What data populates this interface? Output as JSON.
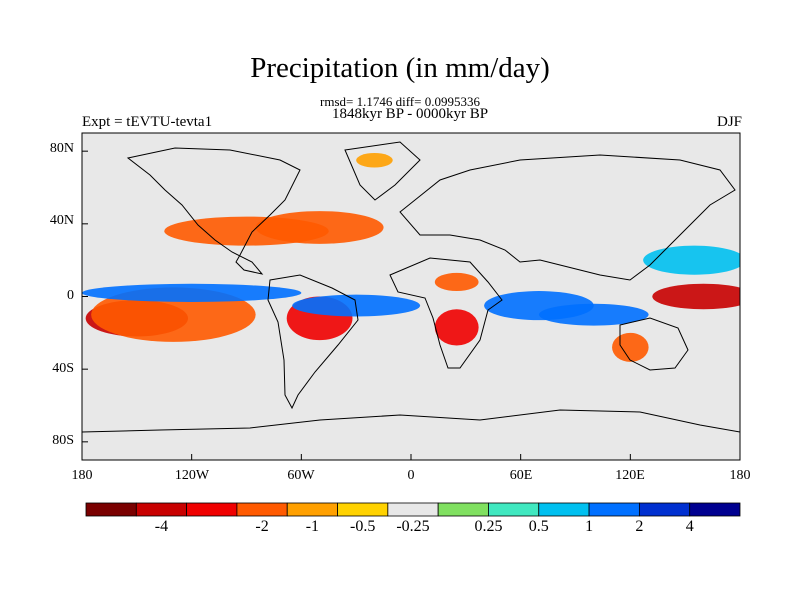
{
  "title": "Precipitation (in mm/day)",
  "subtitle": "rmsd= 1.1746 diff= 0.0995336",
  "period": "1848kyr BP - 0000kyr BP",
  "experiment": "Expt = tEVTU-tevta1",
  "season": "DJF",
  "lat_ticks": [
    "80N",
    "40N",
    "0",
    "40S",
    "80S"
  ],
  "lon_ticks": [
    "180",
    "120W",
    "60W",
    "0",
    "60E",
    "120E",
    "180"
  ],
  "colorbar": {
    "colors": [
      "#7a0000",
      "#c80000",
      "#f00000",
      "#ff5a00",
      "#ffa000",
      "#ffd200",
      "#e8e8e8",
      "#80e060",
      "#40e8c0",
      "#00c0f0",
      "#0070ff",
      "#0030d0",
      "#000090"
    ],
    "labels": [
      "-4",
      "-2",
      "-1",
      "-0.5",
      "-0.25",
      "0.25",
      "0.5",
      "1",
      "2",
      "4"
    ]
  },
  "legend_levels": [
    -4,
    -2,
    -1,
    -0.5,
    -0.25,
    0.25,
    0.5,
    1,
    2,
    4
  ],
  "anomaly_regions": [
    {
      "lon": -150,
      "lat": -12,
      "rx": 28,
      "ry": 10,
      "level": -4
    },
    {
      "lon": -130,
      "lat": -10,
      "rx": 45,
      "ry": 15,
      "level": -1
    },
    {
      "lon": -120,
      "lat": 2,
      "rx": 60,
      "ry": 5,
      "level": 2
    },
    {
      "lon": -90,
      "lat": 36,
      "rx": 45,
      "ry": 8,
      "level": -1
    },
    {
      "lon": -50,
      "lat": 38,
      "rx": 35,
      "ry": 9,
      "level": -1
    },
    {
      "lon": -50,
      "lat": -12,
      "rx": 18,
      "ry": 12,
      "level": -2
    },
    {
      "lon": -30,
      "lat": -5,
      "rx": 35,
      "ry": 6,
      "level": 2
    },
    {
      "lon": 25,
      "lat": 8,
      "rx": 12,
      "ry": 5,
      "level": -1
    },
    {
      "lon": 25,
      "lat": -17,
      "rx": 12,
      "ry": 10,
      "level": -2
    },
    {
      "lon": 70,
      "lat": -5,
      "rx": 30,
      "ry": 8,
      "level": 2
    },
    {
      "lon": 100,
      "lat": -10,
      "rx": 30,
      "ry": 6,
      "level": 2
    },
    {
      "lon": 120,
      "lat": -28,
      "rx": 10,
      "ry": 8,
      "level": -1
    },
    {
      "lon": 160,
      "lat": 0,
      "rx": 28,
      "ry": 7,
      "level": -4
    },
    {
      "lon": 155,
      "lat": 20,
      "rx": 28,
      "ry": 8,
      "level": 1
    },
    {
      "lon": -20,
      "lat": 75,
      "rx": 10,
      "ry": 4,
      "level": -0.5
    }
  ]
}
